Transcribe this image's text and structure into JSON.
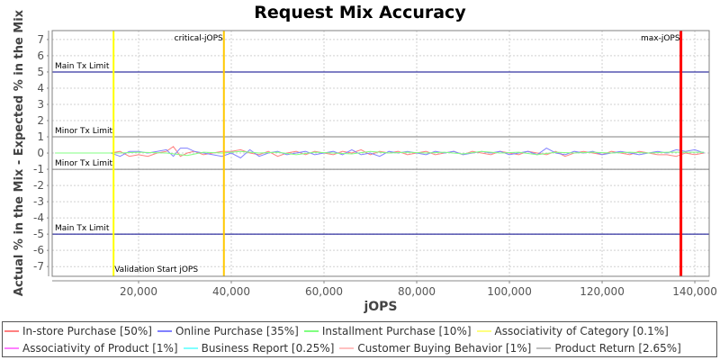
{
  "chart_data": {
    "type": "line",
    "title": "Request Mix Accuracy",
    "xlabel": "jOPS",
    "ylabel": "Actual % in the Mix - Expected % in the Mix",
    "xlim": [
      1360,
      143100
    ],
    "ylim": [
      -7.6,
      7.55
    ],
    "x_ticks": [
      20000,
      40000,
      60000,
      80000,
      100000,
      120000,
      140000
    ],
    "x_tick_labels": [
      "20,000",
      "40,000",
      "60,000",
      "80,000",
      "100,000",
      "120,000",
      "140,000"
    ],
    "y_ticks": [
      7,
      6,
      5,
      4,
      3,
      2,
      1,
      0,
      -1,
      -2,
      -3,
      -4,
      -5,
      -6,
      -7
    ],
    "y_tick_labels": [
      "7",
      "6",
      "5",
      "4",
      "3",
      "2",
      "1",
      "0",
      "-1",
      "-2",
      "-3",
      "-4",
      "-5",
      "-6",
      "-7"
    ],
    "grid": true,
    "legend_position": "bottom",
    "horizontal_markers": [
      {
        "label": "Main Tx Limit",
        "value": 5,
        "color": "#00008b"
      },
      {
        "label": "Minor Tx Limit",
        "value": 1,
        "color": "#808080"
      },
      {
        "label": "Minor Tx Limit",
        "value": -1,
        "color": "#808080"
      },
      {
        "label": "Main Tx Limit",
        "value": -5,
        "color": "#00008b"
      }
    ],
    "vertical_markers": [
      {
        "label": "Validation Start jOPS",
        "value": 14600,
        "color": "#ffff00"
      },
      {
        "label": "critical-jOPS",
        "value": 38400,
        "color": "#ffc800"
      },
      {
        "label": "max-jOPS",
        "value": 137000,
        "color": "#ff0000"
      }
    ],
    "series": [
      {
        "name": "In-store Purchase [50%]",
        "color": "#ff8080",
        "x": [
          2000,
          6000,
          10000,
          14000,
          16000,
          18000,
          20000,
          22000,
          24000,
          26000,
          27500,
          29000,
          30500,
          32000,
          34000,
          36000,
          38000,
          40000,
          42000,
          44000,
          46000,
          48000,
          50000,
          52000,
          54000,
          56000,
          58000,
          60000,
          62000,
          64000,
          66000,
          68000,
          70000,
          72000,
          74000,
          76000,
          78000,
          80000,
          82000,
          84000,
          86000,
          88000,
          90000,
          92000,
          94000,
          96000,
          98000,
          100000,
          102000,
          104000,
          106000,
          108000,
          110000,
          112000,
          114000,
          116000,
          118000,
          120000,
          122000,
          124000,
          126000,
          128000,
          130000,
          132000,
          134000,
          136000,
          138000,
          140000,
          142000
        ],
        "values": [
          0,
          0,
          0,
          0,
          0.1,
          -0.2,
          -0.1,
          -0.2,
          0,
          0.1,
          0.4,
          -0.2,
          0,
          0.1,
          -0.1,
          0,
          0.1,
          0.1,
          0.2,
          0,
          -0.1,
          0.1,
          -0.2,
          0,
          0.1,
          -0.1,
          0.1,
          0,
          -0.1,
          0.1,
          0,
          0.2,
          -0.1,
          0.1,
          0,
          0.1,
          -0.1,
          0,
          0.1,
          -0.1,
          0,
          0.1,
          -0.1,
          0.1,
          0,
          -0.1,
          0.1,
          0,
          -0.1,
          0.1,
          0,
          -0.1,
          0.1,
          -0.2,
          0,
          0.1,
          0,
          -0.1,
          0.1,
          0,
          -0.1,
          0.1,
          0,
          -0.1,
          -0.1,
          -0.2,
          0,
          -0.1,
          0
        ]
      },
      {
        "name": "Online Purchase [35%]",
        "color": "#8080ff",
        "x": [
          2000,
          6000,
          10000,
          14000,
          16000,
          18000,
          20000,
          22000,
          24000,
          26000,
          27500,
          29000,
          30500,
          32000,
          34000,
          36000,
          38000,
          40000,
          42000,
          44000,
          46000,
          48000,
          50000,
          52000,
          54000,
          56000,
          58000,
          60000,
          62000,
          64000,
          66000,
          68000,
          70000,
          72000,
          74000,
          76000,
          78000,
          80000,
          82000,
          84000,
          86000,
          88000,
          90000,
          92000,
          94000,
          96000,
          98000,
          100000,
          102000,
          104000,
          106000,
          108000,
          110000,
          112000,
          114000,
          116000,
          118000,
          120000,
          122000,
          124000,
          126000,
          128000,
          130000,
          132000,
          134000,
          136000,
          138000,
          140000,
          142000
        ],
        "values": [
          0,
          0,
          0,
          0,
          -0.2,
          0.1,
          0.1,
          0,
          0.1,
          0.2,
          -0.2,
          0.3,
          0.3,
          0.1,
          0,
          -0.1,
          -0.2,
          0,
          -0.3,
          0.2,
          -0.2,
          0,
          0.1,
          -0.1,
          0,
          0.1,
          -0.1,
          0,
          0.1,
          -0.1,
          0.2,
          -0.1,
          0,
          -0.2,
          0.1,
          0,
          0.1,
          0,
          -0.1,
          0.1,
          0,
          0.1,
          -0.1,
          0,
          0.1,
          0,
          0.1,
          -0.1,
          0,
          0.1,
          -0.1,
          0.3,
          0,
          -0.1,
          0.1,
          0,
          0.1,
          -0.1,
          0,
          0.1,
          0,
          -0.1,
          0,
          0.1,
          0,
          0.2,
          0.1,
          0.2,
          0
        ]
      },
      {
        "name": "Installment Purchase [10%]",
        "color": "#80ff80",
        "x": [
          2000,
          10000,
          16000,
          20000,
          26000,
          30500,
          34000,
          38000,
          42000,
          46000,
          50000,
          54000,
          58000,
          62000,
          66000,
          70000,
          74000,
          78000,
          82000,
          86000,
          90000,
          94000,
          98000,
          102000,
          106000,
          110000,
          114000,
          118000,
          122000,
          126000,
          130000,
          134000,
          138000,
          142000
        ],
        "values": [
          0,
          0,
          0,
          0.05,
          0,
          -0.15,
          0.05,
          0,
          0.1,
          0,
          0.05,
          -0.1,
          0.05,
          0,
          -0.05,
          0.1,
          0,
          0.05,
          0,
          0.05,
          -0.05,
          0.1,
          0,
          0.05,
          -0.1,
          0.05,
          0,
          0.05,
          0,
          0.05,
          0,
          0.05,
          0.05,
          0.05
        ]
      },
      {
        "name": "Associativity of Category [0.1%]",
        "color": "#ffff80",
        "values": []
      },
      {
        "name": "Associativity of Product [1%]",
        "color": "#ff80ff",
        "values": []
      },
      {
        "name": "Business Report [0.25%]",
        "color": "#80ffff",
        "values": []
      },
      {
        "name": "Customer Buying Behavior [1%]",
        "color": "#ffc0c0",
        "values": []
      },
      {
        "name": "Product Return [2.65%]",
        "color": "#c0c0c0",
        "values": []
      }
    ]
  },
  "legend": {
    "row1": [
      {
        "label": "In-store Purchase [50%]",
        "color": "#ff8080"
      },
      {
        "label": "Online Purchase [35%]",
        "color": "#8080ff"
      },
      {
        "label": "Installment Purchase [10%]",
        "color": "#80ff80"
      },
      {
        "label": "Associativity of Category [0.1%]",
        "color": "#ffff80"
      }
    ],
    "row2": [
      {
        "label": "Associativity of Product [1%]",
        "color": "#ff80ff"
      },
      {
        "label": "Business Report [0.25%]",
        "color": "#80ffff"
      },
      {
        "label": "Customer Buying Behavior [1%]",
        "color": "#ffc0c0"
      },
      {
        "label": "Product Return [2.65%]",
        "color": "#c0c0c0"
      }
    ]
  }
}
